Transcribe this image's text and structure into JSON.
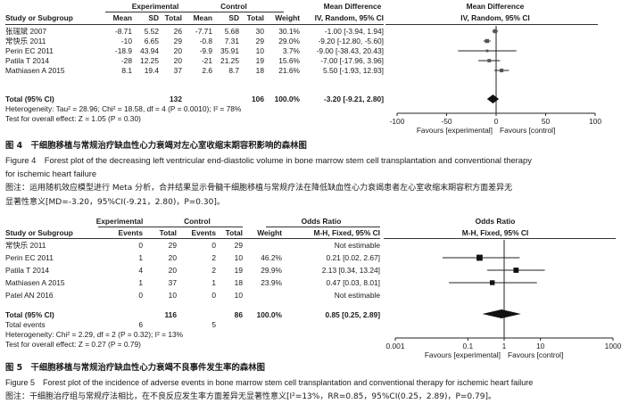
{
  "figure4": {
    "group_headers": {
      "experimental": "Experimental",
      "control": "Control",
      "md": "Mean Difference",
      "md_plot": "Mean Difference"
    },
    "col_headers": {
      "study": "Study or Subgroup",
      "mean_e": "Mean",
      "sd_e": "SD",
      "total_e": "Total",
      "mean_c": "Mean",
      "sd_c": "SD",
      "total_c": "Total",
      "weight": "Weight",
      "md_ci": "IV, Random, 95% CI",
      "md_plot_sub": "IV, Random, 95% CI"
    },
    "studies": [
      {
        "name": "张瑞斌 2007",
        "mean_e": "-8.71",
        "sd_e": "5.52",
        "total_e": "26",
        "mean_c": "-7.71",
        "sd_c": "5.68",
        "total_c": "30",
        "weight": "30.1%",
        "ci": "-1.00 [-3.94, 1.94]",
        "est": -1.0,
        "lo": -3.94,
        "hi": 1.94,
        "w": 30.1
      },
      {
        "name": "常快乐 2011",
        "mean_e": "-10",
        "sd_e": "6.65",
        "total_e": "29",
        "mean_c": "-0.8",
        "sd_c": "7.31",
        "total_c": "29",
        "weight": "29.0%",
        "ci": "-9.20 [-12.80, -5.60]",
        "est": -9.2,
        "lo": -12.8,
        "hi": -5.6,
        "w": 29.0
      },
      {
        "name": "Perin EC 2011",
        "mean_e": "-18.9",
        "sd_e": "43.94",
        "total_e": "20",
        "mean_c": "-9.9",
        "sd_c": "35.91",
        "total_c": "10",
        "weight": "3.7%",
        "ci": "-9.00 [-38.43, 20.43]",
        "est": -9.0,
        "lo": -38.43,
        "hi": 20.43,
        "w": 3.7
      },
      {
        "name": "Patila T 2014",
        "mean_e": "-28",
        "sd_e": "12.25",
        "total_e": "20",
        "mean_c": "-21",
        "sd_c": "21.25",
        "total_c": "19",
        "weight": "15.6%",
        "ci": "-7.00 [-17.96, 3.96]",
        "est": -7.0,
        "lo": -17.96,
        "hi": 3.96,
        "w": 15.6
      },
      {
        "name": "Mathiasen A 2015",
        "mean_e": "8.1",
        "sd_e": "19.4",
        "total_e": "37",
        "mean_c": "2.6",
        "sd_c": "8.7",
        "total_c": "18",
        "weight": "21.6%",
        "ci": "5.50 [-1.93, 12.93]",
        "est": 5.5,
        "lo": -1.93,
        "hi": 12.93,
        "w": 21.6
      }
    ],
    "total": {
      "label": "Total (95% CI)",
      "total_e": "132",
      "total_c": "106",
      "weight": "100.0%",
      "ci": "-3.20 [-9.21, 2.80]",
      "est": -3.2,
      "lo": -9.21,
      "hi": 2.8
    },
    "heterogeneity": "Heterogeneity: Tau² = 28.96; Chi² = 18.58, df = 4 (P = 0.0010); I² = 78%",
    "overall": "Test for overall effect: Z = 1.05 (P = 0.30)",
    "axis": {
      "ticks": [
        -100,
        -50,
        0,
        50,
        100
      ],
      "tick_labels": [
        "-100",
        "-50",
        "0",
        "50",
        "100"
      ],
      "left_label": "Favours [experimental]",
      "right_label": "Favours [control]"
    },
    "caption_zh": "图 4　干细胞移植与常规治疗缺血性心力衰竭对左心室收缩末期容积影响的森林图",
    "caption_en_1": "Figure 4　Forest plot of the decreasing left ventricular end-diastolic volume in bone marrow stem cell transplantation and conventional therapy",
    "caption_en_2": "for ischemic heart failure",
    "note_1": "图注：运用随机效应模型进行 Meta 分析，合并结果显示骨髓干细胞移植与常规疗法在降低缺血性心力衰竭患者左心室收缩末期容积方面差异无",
    "note_2": "显著性意义[MD=-3.20，95%CI(-9.21，2.80)，P=0.30]。"
  },
  "figure5": {
    "group_headers": {
      "experimental": "Experimental",
      "control": "Control",
      "or": "Odds Ratio",
      "or_plot": "Odds Ratio"
    },
    "col_headers": {
      "study": "Study or Subgroup",
      "events_e": "Events",
      "total_e": "Total",
      "events_c": "Events",
      "total_c": "Total",
      "weight": "Weight",
      "or_ci": "M-H, Fixed, 95% CI",
      "or_plot_sub": "M-H, Fixed, 95% CI"
    },
    "studies": [
      {
        "name": "常快乐 2011",
        "events_e": "0",
        "total_e": "29",
        "events_c": "0",
        "total_c": "29",
        "weight": "",
        "ci": "Not estimable",
        "est": null,
        "lo": null,
        "hi": null,
        "w": 0
      },
      {
        "name": "Perin EC 2011",
        "events_e": "1",
        "total_e": "20",
        "events_c": "2",
        "total_c": "10",
        "weight": "46.2%",
        "ci": "0.21 [0.02, 2.67]",
        "est": 0.21,
        "lo": 0.02,
        "hi": 2.67,
        "w": 46.2
      },
      {
        "name": "Patila T 2014",
        "events_e": "4",
        "total_e": "20",
        "events_c": "2",
        "total_c": "19",
        "weight": "29.9%",
        "ci": "2.13 [0.34, 13.24]",
        "est": 2.13,
        "lo": 0.34,
        "hi": 13.24,
        "w": 29.9
      },
      {
        "name": "Mathiasen A 2015",
        "events_e": "1",
        "total_e": "37",
        "events_c": "1",
        "total_c": "18",
        "weight": "23.9%",
        "ci": "0.47 [0.03, 8.01]",
        "est": 0.47,
        "lo": 0.03,
        "hi": 8.01,
        "w": 23.9
      },
      {
        "name": "Patel AN 2016",
        "events_e": "0",
        "total_e": "10",
        "events_c": "0",
        "total_c": "10",
        "weight": "",
        "ci": "Not estimable",
        "est": null,
        "lo": null,
        "hi": null,
        "w": 0
      }
    ],
    "total": {
      "label": "Total (95% CI)",
      "total_e": "116",
      "total_c": "86",
      "weight": "100.0%",
      "ci": "0.85 [0.25, 2.89]",
      "est": 0.85,
      "lo": 0.25,
      "hi": 2.89
    },
    "total_events": {
      "label": "Total events",
      "events_e": "6",
      "events_c": "5"
    },
    "heterogeneity": "Heterogeneity: Chi² = 2.29, df = 2 (P = 0.32); I² = 13%",
    "overall": "Test for overall effect: Z = 0.27 (P = 0.79)",
    "axis": {
      "ticks": [
        0.001,
        0.1,
        1,
        10,
        1000
      ],
      "tick_labels": [
        "0.001",
        "0.1",
        "1",
        "10",
        "1000"
      ],
      "scale": "log",
      "left_label": "Favours [experimental]",
      "right_label": "Favours [control]"
    },
    "caption_zh": "图 5　干细胞移植与常规治疗缺血性心力衰竭不良事件发生率的森林图",
    "caption_en": "Figure 5　Forest plot of the incidence of adverse events in bone marrow stem cell transplantation and conventional therapy for ischemic heart failure",
    "note": "图注：干细胞治疗组与常规疗法相比，在不良反应发生率方面差异无显著性意义[I²=13%，RR=0.85，95%CI(0.25，2.89)，P=0.79]。"
  },
  "chart_data": [
    {
      "type": "scatter",
      "title": "",
      "xlabel": "",
      "ylabel": "",
      "x_scale": "linear",
      "xlim": [
        -100,
        100
      ],
      "x_ticks": [
        -100,
        -50,
        0,
        50,
        100
      ],
      "categories": [
        "张瑞斌 2007",
        "常快乐 2011",
        "Perin EC 2011",
        "Patila T 2014",
        "Mathiasen A 2015",
        "Total (95% CI)"
      ],
      "series": [
        {
          "values": [
            -1.0,
            -9.2,
            -9.0,
            -7.0,
            5.5,
            -3.2
          ],
          "ci_low": [
            -3.94,
            -12.8,
            -38.43,
            -17.96,
            -1.93,
            -9.21
          ],
          "ci_high": [
            1.94,
            -5.6,
            20.43,
            3.96,
            12.93,
            2.8
          ]
        }
      ]
    },
    {
      "type": "scatter",
      "title": "",
      "xlabel": "",
      "ylabel": "",
      "x_scale": "log",
      "xlim": [
        0.001,
        1000
      ],
      "x_ticks": [
        0.001,
        0.1,
        1,
        10,
        1000
      ],
      "categories": [
        "常快乐 2011",
        "Perin EC 2011",
        "Patila T 2014",
        "Mathiasen A 2015",
        "Patel AN 2016",
        "Total (95% CI)"
      ],
      "series": [
        {
          "values": [
            null,
            0.21,
            2.13,
            0.47,
            null,
            0.85
          ],
          "ci_low": [
            null,
            0.02,
            0.34,
            0.03,
            null,
            0.25
          ],
          "ci_high": [
            null,
            2.67,
            13.24,
            8.01,
            null,
            2.89
          ]
        }
      ]
    }
  ]
}
